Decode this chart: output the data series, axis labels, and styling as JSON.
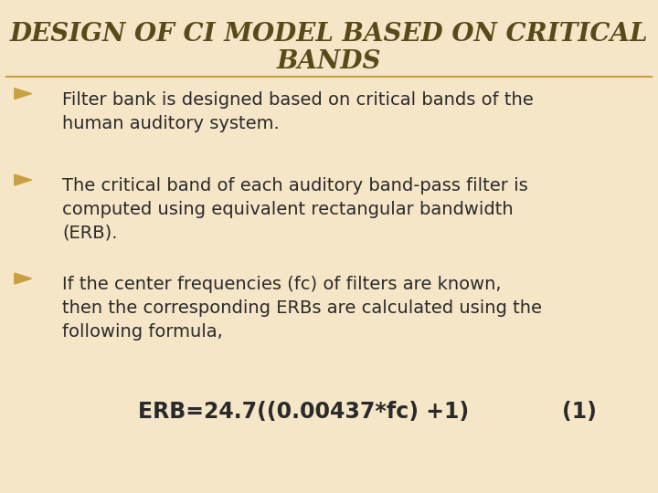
{
  "background_color": "#f5e6c8",
  "title_line1": "DESIGN OF CI MODEL BASED ON CRITICAL",
  "title_line2": "BANDS",
  "title_color": "#5a4a1a",
  "title_fontstyle": "italic",
  "title_fontsize": 20,
  "divider_color": "#c8a040",
  "bullet_color": "#c8a040",
  "text_color": "#2a2a2a",
  "body_fontsize": 14.0,
  "bullet_points": [
    "Filter bank is designed based on critical bands of the\nhuman auditory system.",
    "The critical band of each auditory band-pass filter is\ncomputed using equivalent rectangular bandwidth\n(ERB).",
    "If the center frequencies (fc) of filters are known,\nthen the corresponding ERBs are calculated using the\nfollowing formula,"
  ],
  "formula": "ERB=24.7((0.00437*fc) +1)",
  "formula_number": "(1)",
  "formula_fontsize": 17,
  "formula_color": "#2a2a2a"
}
